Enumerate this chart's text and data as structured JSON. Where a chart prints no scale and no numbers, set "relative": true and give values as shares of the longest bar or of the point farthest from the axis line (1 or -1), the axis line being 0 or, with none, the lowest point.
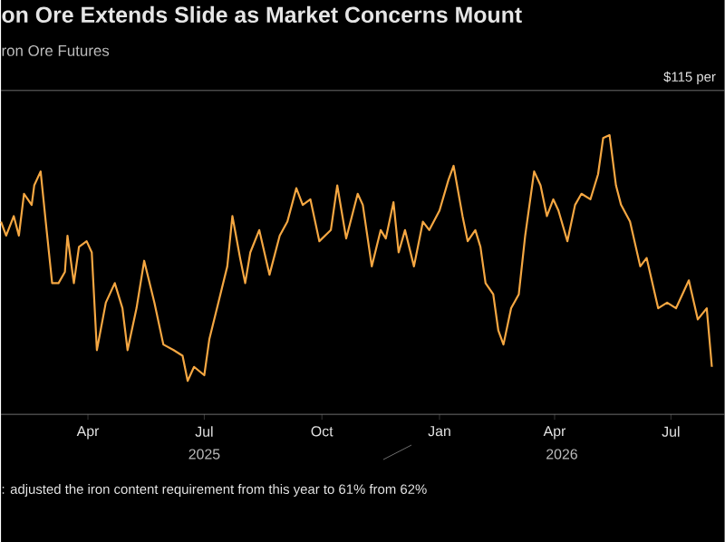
{
  "chart_data": {
    "type": "line",
    "title": "on Ore Extends Slide as Market Concerns Mount",
    "subtitle": "ron Ore Futures",
    "relative": true,
    "line_style": "solid",
    "annotations": [
      "$115 per",
      "2025",
      "2026",
      ": adjusted the iron content requirement from this year to 61% from 62%"
    ],
    "xlim": [
      "2025-01-23",
      "2026-08-12"
    ],
    "xticks": [
      {
        "value": "2025-04-01",
        "label": "Apr"
      },
      {
        "value": "2025-07-01",
        "label": "Jul"
      },
      {
        "value": "2025-10-01",
        "label": "Oct"
      },
      {
        "value": "2026-01-01",
        "label": "Jan"
      },
      {
        "value": "2026-04-01",
        "label": "Apr"
      },
      {
        "value": "2026-07-01",
        "label": "Jul"
      }
    ],
    "series": [
      {
        "color": "#f5a742",
        "x": [
          "2025-01-23",
          "2025-01-27",
          "2025-02-02",
          "2025-02-06",
          "2025-02-10",
          "2025-02-16",
          "2025-02-18",
          "2025-02-23",
          "2025-02-27",
          "2025-03-04",
          "2025-03-09",
          "2025-03-14",
          "2025-03-16",
          "2025-03-21",
          "2025-03-25",
          "2025-03-31",
          "2025-04-04",
          "2025-04-08",
          "2025-04-15",
          "2025-04-22",
          "2025-04-28",
          "2025-05-02",
          "2025-05-09",
          "2025-05-15",
          "2025-05-23",
          "2025-05-30",
          "2025-06-07",
          "2025-06-14",
          "2025-06-18",
          "2025-06-23",
          "2025-07-01",
          "2025-07-05",
          "2025-07-12",
          "2025-07-19",
          "2025-07-23",
          "2025-07-29",
          "2025-08-02",
          "2025-08-06",
          "2025-08-13",
          "2025-08-21",
          "2025-08-29",
          "2025-09-04",
          "2025-09-11",
          "2025-09-16",
          "2025-09-22",
          "2025-09-29",
          "2025-10-08",
          "2025-10-13",
          "2025-10-20",
          "2025-10-29",
          "2025-11-02",
          "2025-11-09",
          "2025-11-16",
          "2025-11-20",
          "2025-11-26",
          "2025-11-30",
          "2025-12-05",
          "2025-12-12",
          "2025-12-19",
          "2025-12-24",
          "2026-01-01",
          "2026-01-08",
          "2026-01-12",
          "2026-01-19",
          "2026-01-23",
          "2026-01-29",
          "2026-02-02",
          "2026-02-06",
          "2026-02-12",
          "2026-02-16",
          "2026-02-20",
          "2026-02-26",
          "2026-03-04",
          "2026-03-09",
          "2026-03-16",
          "2026-03-21",
          "2026-03-26",
          "2026-03-31",
          "2026-04-04",
          "2026-04-11",
          "2026-04-17",
          "2026-04-22",
          "2026-04-29",
          "2026-05-05",
          "2026-05-09",
          "2026-05-14",
          "2026-05-19",
          "2026-05-23",
          "2026-05-30",
          "2026-06-07",
          "2026-06-12",
          "2026-06-21",
          "2026-06-28",
          "2026-07-05",
          "2026-07-15",
          "2026-07-22",
          "2026-07-29",
          "2026-08-02"
        ],
        "values": [
          0.69,
          0.64,
          0.71,
          0.64,
          0.79,
          0.75,
          0.82,
          0.87,
          0.69,
          0.47,
          0.47,
          0.51,
          0.64,
          0.47,
          0.6,
          0.62,
          0.58,
          0.23,
          0.4,
          0.47,
          0.38,
          0.23,
          0.38,
          0.55,
          0.4,
          0.25,
          0.23,
          0.21,
          0.12,
          0.17,
          0.14,
          0.27,
          0.4,
          0.53,
          0.71,
          0.56,
          0.47,
          0.58,
          0.66,
          0.5,
          0.64,
          0.69,
          0.81,
          0.75,
          0.77,
          0.62,
          0.66,
          0.82,
          0.63,
          0.79,
          0.75,
          0.53,
          0.66,
          0.63,
          0.76,
          0.58,
          0.66,
          0.53,
          0.69,
          0.66,
          0.73,
          0.84,
          0.89,
          0.71,
          0.62,
          0.66,
          0.6,
          0.47,
          0.43,
          0.3,
          0.25,
          0.38,
          0.43,
          0.64,
          0.87,
          0.82,
          0.71,
          0.77,
          0.73,
          0.62,
          0.75,
          0.79,
          0.77,
          0.86,
          0.99,
          1.0,
          0.82,
          0.75,
          0.69,
          0.53,
          0.56,
          0.38,
          0.4,
          0.38,
          0.48,
          0.34,
          0.38,
          0.17
        ]
      }
    ]
  }
}
